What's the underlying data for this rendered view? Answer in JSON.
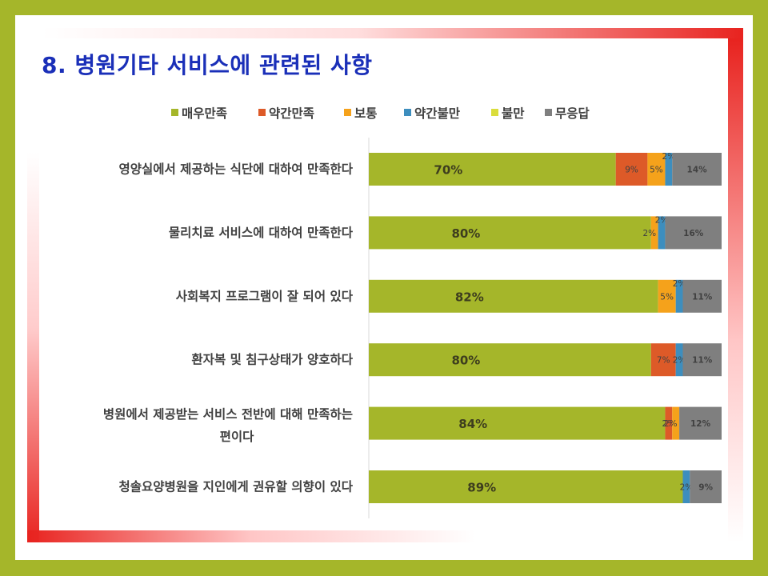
{
  "title": "8. 병원기타 서비스에 관련된 사항",
  "colors": {
    "background": "#a5b62a",
    "title": "#1a2fb8",
    "frame_accent": "#e8231f"
  },
  "chart_data": {
    "type": "bar",
    "orientation": "horizontal",
    "stacked": "percent",
    "legend_position": "top",
    "grid": false,
    "xlim": [
      0,
      100
    ],
    "categories": [
      "영양실에서 제공하는 식단에 대하여 만족한다",
      "물리치료 서비스에 대하여 만족한다",
      "사회복지 프로그램이 잘 되어 있다",
      "환자복 및 침구상태가 양호하다",
      "병원에서 제공받는 서비스 전반에 대해 만족하는 편이다",
      "청솔요양병원을 지인에게 권유할 의향이 있다"
    ],
    "series": [
      {
        "name": "매우만족",
        "color": "#a5b62a",
        "values": [
          70,
          80,
          82,
          80,
          84,
          89
        ],
        "labels": [
          "70%",
          "80%",
          "82%",
          "80%",
          "84%",
          "89%"
        ]
      },
      {
        "name": "약간만족",
        "color": "#dd5a28",
        "values": [
          9,
          0,
          0,
          7,
          2,
          0
        ],
        "labels": [
          "9%",
          "",
          "",
          "7%",
          "2%",
          ""
        ]
      },
      {
        "name": "보통",
        "color": "#f5a21b",
        "values": [
          5,
          2,
          5,
          0,
          2,
          0
        ],
        "labels": [
          "5%",
          "2%",
          "5%",
          "",
          "2%",
          ""
        ]
      },
      {
        "name": "약간불만",
        "color": "#3d8ebe",
        "values": [
          2,
          2,
          2,
          2,
          0,
          2
        ],
        "labels": [
          "2%",
          "2%",
          "2%",
          "2%",
          "",
          "2%"
        ]
      },
      {
        "name": "불만",
        "color": "#dadd3c",
        "values": [
          0,
          0,
          0,
          0,
          0,
          0
        ],
        "labels": [
          "",
          "",
          "",
          "",
          "",
          ""
        ]
      },
      {
        "name": "무응답",
        "color": "#7f7f7f",
        "values": [
          14,
          16,
          11,
          11,
          12,
          9
        ],
        "labels": [
          "14%",
          "16%",
          "11%",
          "11%",
          "12%",
          "9%"
        ]
      }
    ]
  }
}
